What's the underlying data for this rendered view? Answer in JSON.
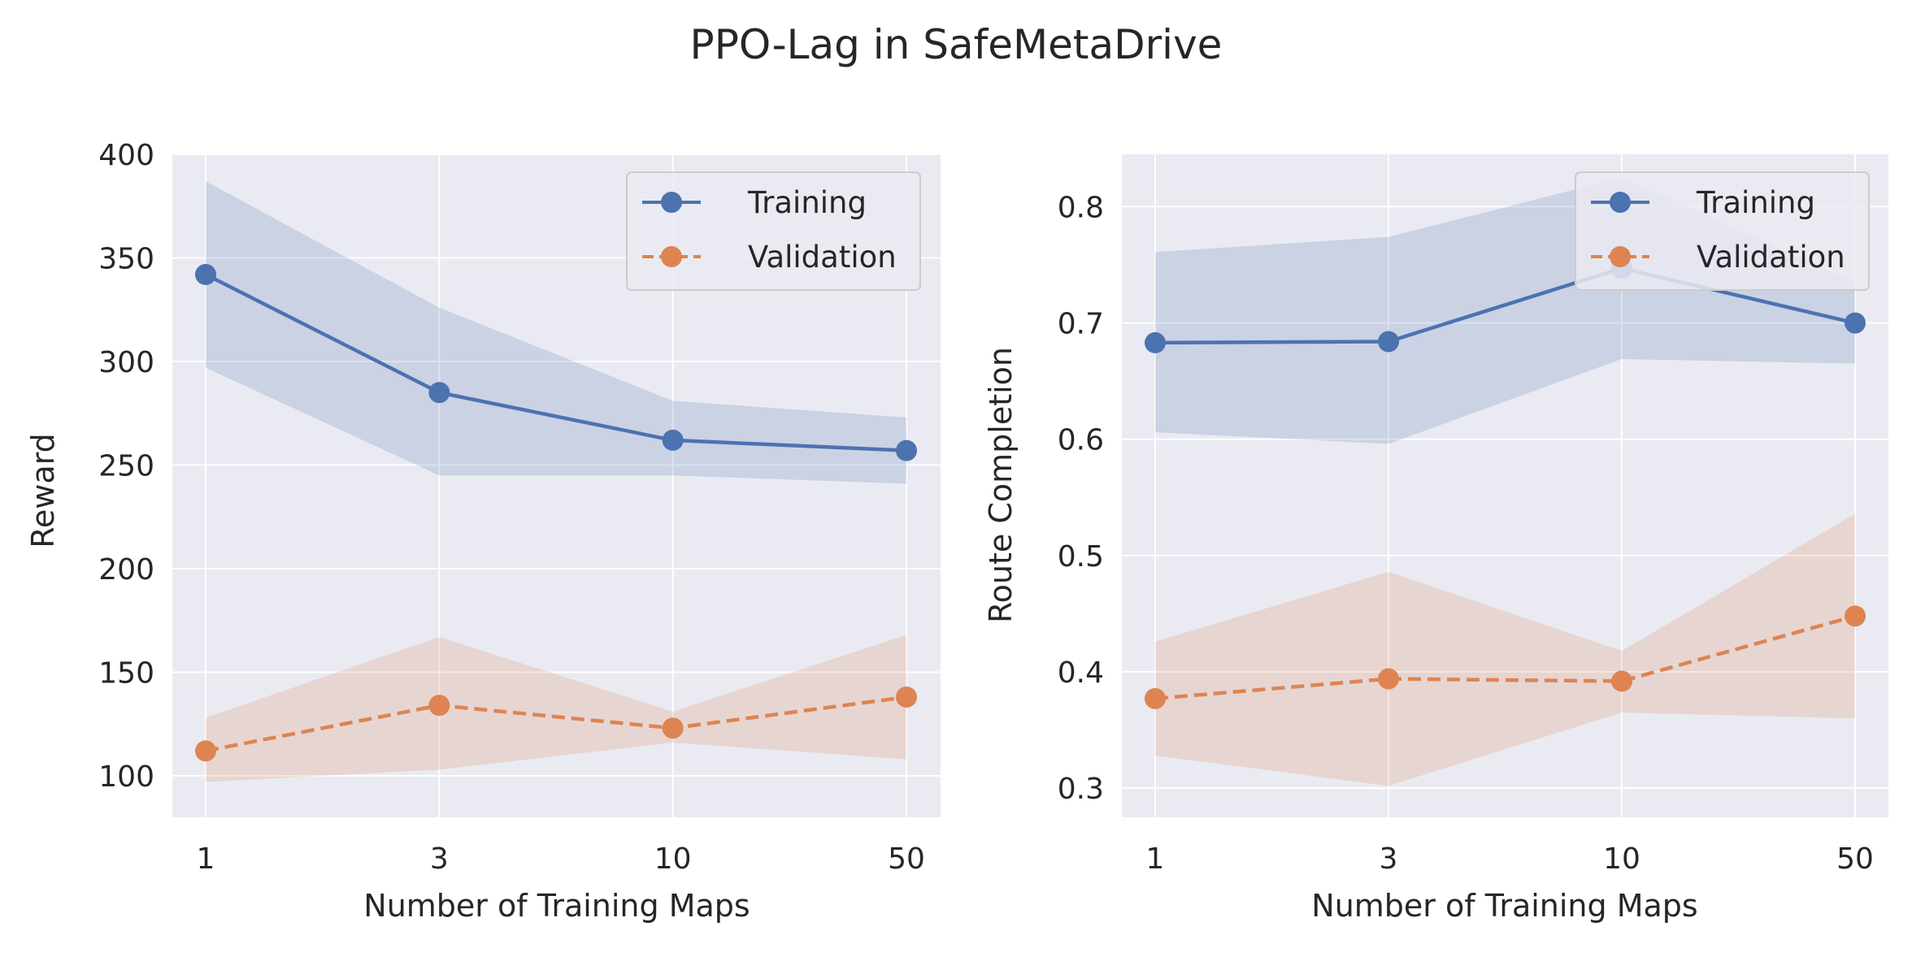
{
  "figure": {
    "title": "PPO-Lag in SafeMetaDrive"
  },
  "colors": {
    "training": "#4C72B0",
    "validation": "#DD8452",
    "axes_background": "#EAEAF2",
    "grid": "#FFFFFF"
  },
  "chart_data": [
    {
      "type": "line",
      "xlabel": "Number of Training Maps",
      "ylabel": "Reward",
      "x_scale": "categorical",
      "categories": [
        "1",
        "3",
        "10",
        "50"
      ],
      "ylim": [
        80,
        400
      ],
      "yticks": [
        100,
        150,
        200,
        250,
        300,
        350,
        400
      ],
      "grid": true,
      "legend": "top-right",
      "series": [
        {
          "name": "Training",
          "values": [
            342,
            285,
            262,
            257
          ],
          "band_upper": [
            387,
            326,
            281,
            273
          ],
          "band_lower": [
            297,
            245,
            245,
            241
          ],
          "line_style": "solid",
          "marker": "circle"
        },
        {
          "name": "Validation",
          "values": [
            112,
            134,
            123,
            138
          ],
          "band_upper": [
            128,
            167,
            131,
            168
          ],
          "band_lower": [
            97,
            103,
            116,
            108
          ],
          "line_style": "dashed",
          "marker": "circle"
        }
      ]
    },
    {
      "type": "line",
      "xlabel": "Number of Training Maps",
      "ylabel": "Route Completion",
      "x_scale": "categorical",
      "categories": [
        "1",
        "3",
        "10",
        "50"
      ],
      "ylim": [
        0.275,
        0.845
      ],
      "yticks": [
        "0.3",
        "0.4",
        "0.5",
        "0.6",
        "0.7",
        "0.8"
      ],
      "grid": true,
      "legend": "top-right",
      "series": [
        {
          "name": "Training",
          "values": [
            0.683,
            0.684,
            0.747,
            0.7
          ],
          "band_upper": [
            0.761,
            0.774,
            0.825,
            0.735
          ],
          "band_lower": [
            0.606,
            0.596,
            0.669,
            0.665
          ],
          "line_style": "solid",
          "marker": "circle"
        },
        {
          "name": "Validation",
          "values": [
            0.377,
            0.394,
            0.392,
            0.448
          ],
          "band_upper": [
            0.426,
            0.486,
            0.418,
            0.536
          ],
          "band_lower": [
            0.328,
            0.302,
            0.365,
            0.36
          ],
          "line_style": "dashed",
          "marker": "circle"
        }
      ]
    }
  ]
}
